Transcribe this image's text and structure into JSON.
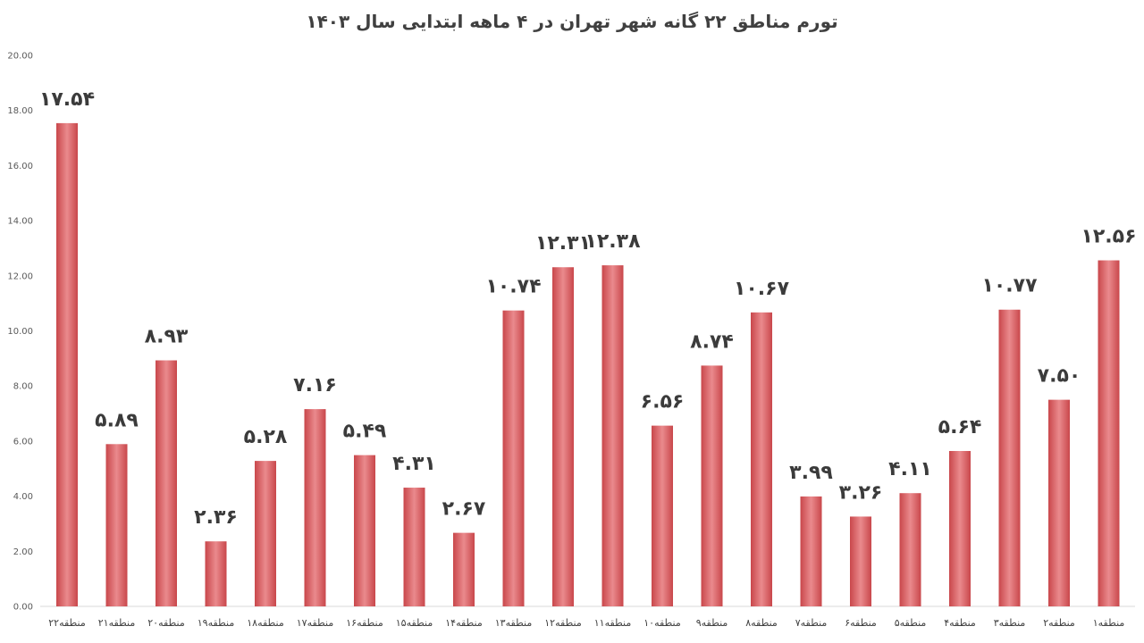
{
  "chart_data": {
    "type": "bar",
    "title": "تورم مناطق ۲۲ گانه شهر تهران در ۴ ماهه ابتدایی سال ۱۴۰۳",
    "categories": [
      "منطقه۲۲",
      "منطقه۲۱",
      "منطقه۲۰",
      "منطقه۱۹",
      "منطقه۱۸",
      "منطقه۱۷",
      "منطقه۱۶",
      "منطقه۱۵",
      "منطقه۱۴",
      "منطقه۱۳",
      "منطقه۱۲",
      "منطقه۱۱",
      "منطقه۱۰",
      "منطقه۹",
      "منطقه۸",
      "منطقه۷",
      "منطقه۶",
      "منطقه۵",
      "منطقه۴",
      "منطقه۳",
      "منطقه۲",
      "منطقه۱"
    ],
    "values": [
      17.54,
      5.89,
      8.93,
      2.36,
      5.28,
      7.16,
      5.49,
      4.31,
      2.67,
      10.74,
      12.31,
      12.38,
      6.56,
      8.74,
      10.67,
      3.99,
      3.26,
      4.11,
      5.64,
      10.77,
      7.5,
      12.56
    ],
    "data_labels": [
      "۱۷.۵۴",
      "۵.۸۹",
      "۸.۹۳",
      "۲.۳۶",
      "۵.۲۸",
      "۷.۱۶",
      "۵.۴۹",
      "۴.۳۱",
      "۲.۶۷",
      "۱۰.۷۴",
      "۱۲.۳۱",
      "۱۲.۳۸",
      "۶.۵۶",
      "۸.۷۴",
      "۱۰.۶۷",
      "۳.۹۹",
      "۳.۲۶",
      "۴.۱۱",
      "۵.۶۴",
      "۱۰.۷۷",
      "۷.۵۰",
      "۱۲.۵۶"
    ],
    "ylim": [
      0,
      20
    ],
    "yticks": [
      0,
      2,
      4,
      6,
      8,
      10,
      12,
      14,
      16,
      18,
      20
    ],
    "ytick_labels": [
      "0.00",
      "2.00",
      "4.00",
      "6.00",
      "8.00",
      "10.00",
      "12.00",
      "14.00",
      "16.00",
      "18.00",
      "20.00"
    ],
    "grid": false,
    "legend": "none",
    "bar_color": "#c9474b"
  }
}
